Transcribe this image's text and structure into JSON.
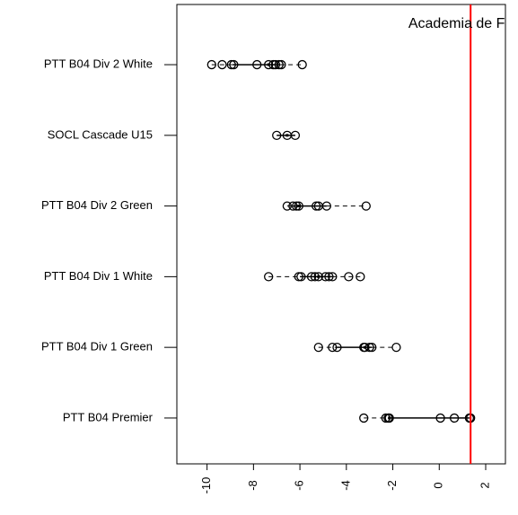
{
  "chart_data": {
    "type": "boxplot",
    "orientation": "horizontal",
    "categories": [
      "PTT B04 Premier",
      "PTT B04 Div 1 Green",
      "PTT B04 Div 1 White",
      "PTT B04 Div 2 Green",
      "SOCL Cascade U15",
      "PTT B04 Div 2 White"
    ],
    "values": [
      [
        -3.25,
        -2.3,
        -2.2,
        -2.15,
        0.05,
        0.65,
        1.3,
        1.35
      ],
      [
        -5.2,
        -4.6,
        -4.4,
        -3.25,
        -3.2,
        -3.0,
        -2.9,
        -1.85
      ],
      [
        -7.35,
        -6.05,
        -5.95,
        -5.5,
        -5.35,
        -5.2,
        -4.9,
        -4.75,
        -4.6,
        -3.9,
        -3.4
      ],
      [
        -6.55,
        -6.3,
        -6.15,
        -6.05,
        -5.3,
        -5.2,
        -4.85,
        -3.15
      ],
      [
        -7.0,
        -6.55,
        -6.2
      ],
      [
        -9.8,
        -9.35,
        -8.95,
        -8.85,
        -7.85,
        -7.35,
        -7.15,
        -7.05,
        -6.9,
        -6.8,
        -5.9
      ]
    ],
    "boxes": [
      [
        -3.25,
        -2.2,
        -2.15,
        1.3,
        1.35
      ],
      [
        -5.2,
        -4.4,
        -3.2,
        -2.9,
        -1.85
      ],
      [
        -7.35,
        -6.0,
        -5.2,
        -4.6,
        -3.4
      ],
      [
        -6.55,
        -6.3,
        -6.05,
        -4.85,
        -3.15
      ],
      [
        -7.0,
        -7.0,
        -6.55,
        -6.2,
        -6.2
      ],
      [
        -9.8,
        -8.9,
        -7.35,
        -6.85,
        -5.9
      ]
    ],
    "color": "#000000",
    "xlim": [
      -11.3,
      2.85
    ],
    "xticks": [
      -10,
      -8,
      -6,
      -4,
      -2,
      0,
      2
    ],
    "annotation": {
      "text": "Academia de Futeb",
      "value": 1.35,
      "color": "#ff0000"
    }
  }
}
